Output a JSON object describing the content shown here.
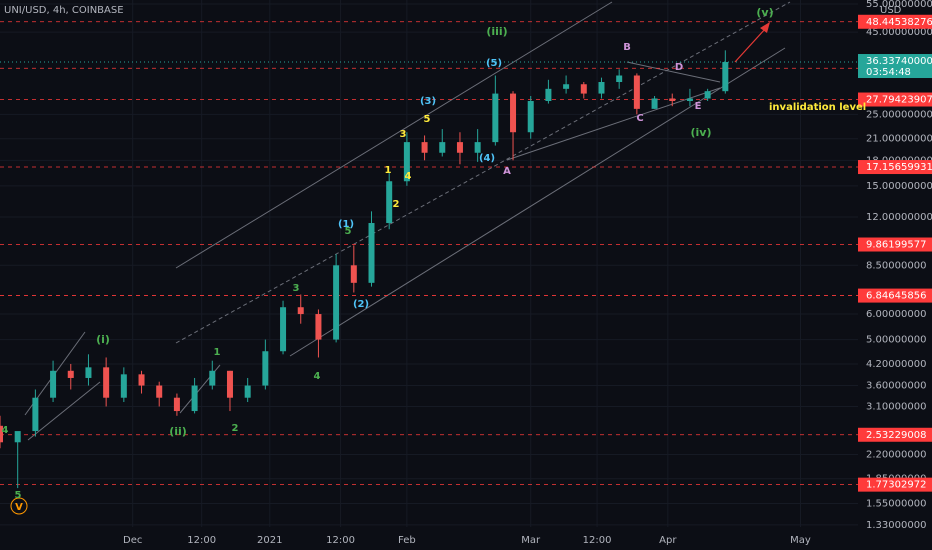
{
  "chart_data": {
    "type": "candlestick",
    "title": "UNI/USD, 4h, COINBASE",
    "currency": "USD",
    "log_scale": true,
    "up_color": "#26a69a",
    "down_color": "#ef5350",
    "x": [
      -30,
      -26,
      -22,
      -18,
      -14,
      -10,
      -6,
      -2,
      2,
      6,
      10,
      14,
      18,
      22,
      26,
      30,
      34,
      38,
      42,
      46,
      50,
      54,
      58,
      62,
      66,
      70,
      74,
      78,
      82,
      86,
      90,
      94,
      98,
      102,
      106,
      110,
      114,
      118,
      122,
      126,
      130,
      134
    ],
    "open": [
      2.7,
      2.4,
      2.6,
      3.3,
      4.0,
      3.8,
      4.1,
      3.3,
      3.9,
      3.6,
      3.3,
      3.0,
      3.6,
      4.0,
      3.3,
      3.6,
      4.6,
      6.3,
      6.0,
      5.0,
      8.5,
      7.5,
      11.5,
      15.5,
      20.5,
      19.0,
      20.5,
      19.0,
      20.5,
      29.0,
      22.0,
      27.5,
      30.0,
      31.0,
      29.0,
      31.5,
      33.0,
      26.0,
      28.0,
      27.5,
      28.0,
      29.5
    ],
    "high": [
      2.9,
      2.5,
      3.5,
      4.3,
      4.2,
      4.5,
      4.4,
      4.1,
      4.0,
      3.7,
      3.4,
      3.8,
      4.3,
      4.0,
      3.8,
      5.0,
      6.6,
      6.9,
      6.2,
      9.2,
      9.8,
      12.5,
      16.5,
      22.0,
      21.5,
      22.5,
      22.0,
      22.5,
      33.0,
      29.5,
      28.5,
      32.0,
      33.0,
      31.5,
      32.5,
      34.5,
      33.5,
      28.5,
      29.0,
      30.0,
      30.0,
      39.5
    ],
    "low": [
      2.3,
      1.73,
      2.5,
      3.2,
      3.5,
      3.6,
      3.1,
      3.2,
      3.4,
      3.1,
      2.9,
      2.95,
      3.5,
      3.0,
      3.2,
      3.5,
      4.5,
      5.6,
      4.4,
      4.9,
      7.0,
      7.3,
      11.0,
      15.0,
      18.0,
      18.5,
      17.5,
      17.8,
      20.0,
      18.0,
      21.0,
      27.0,
      29.0,
      28.0,
      28.0,
      30.0,
      25.0,
      26.0,
      26.5,
      26.5,
      27.5,
      29.0
    ],
    "close": [
      2.4,
      2.6,
      3.3,
      4.0,
      3.8,
      4.1,
      3.3,
      3.9,
      3.6,
      3.3,
      3.0,
      3.6,
      4.0,
      3.3,
      3.6,
      4.6,
      6.3,
      6.0,
      5.0,
      8.5,
      7.5,
      11.5,
      15.5,
      20.5,
      19.0,
      20.5,
      19.0,
      20.5,
      29.0,
      22.0,
      27.5,
      30.0,
      31.0,
      29.0,
      31.5,
      33.0,
      26.0,
      28.0,
      27.5,
      28.0,
      29.5,
      36.3374
    ],
    "xlim": [
      -30,
      164
    ],
    "ylim": [
      1.31,
      56.6
    ],
    "xticks": [
      {
        "value": 0,
        "label": "Dec"
      },
      {
        "value": 15.6,
        "label": "12:00"
      },
      {
        "value": 31,
        "label": "2021"
      },
      {
        "value": 47,
        "label": "12:00"
      },
      {
        "value": 62,
        "label": "Feb"
      },
      {
        "value": 90,
        "label": "Mar"
      },
      {
        "value": 105,
        "label": "12:00"
      },
      {
        "value": 121,
        "label": "Apr"
      },
      {
        "value": 151,
        "label": "May"
      }
    ],
    "yticks": [
      {
        "value": 55,
        "label": "55.00000000"
      },
      {
        "value": 45,
        "label": "45.00000000"
      },
      {
        "value": 25,
        "label": "25.00000000"
      },
      {
        "value": 21,
        "label": "21.00000000"
      },
      {
        "value": 18,
        "label": "18.00000000"
      },
      {
        "value": 15,
        "label": "15.00000000"
      },
      {
        "value": 12,
        "label": "12.00000000"
      },
      {
        "value": 8.5,
        "label": "8.50000000"
      },
      {
        "value": 6,
        "label": "6.00000000"
      },
      {
        "value": 5,
        "label": "5.00000000"
      },
      {
        "value": 4.2,
        "label": "4.20000000"
      },
      {
        "value": 3.6,
        "label": "3.60000000"
      },
      {
        "value": 3.1,
        "label": "3.10000000"
      },
      {
        "value": 2.2,
        "label": "2.20000000"
      },
      {
        "value": 1.85,
        "label": "1.85000000"
      },
      {
        "value": 1.55,
        "label": "1.55000000"
      },
      {
        "value": 1.33,
        "label": "1.33000000"
      }
    ],
    "level_color": "#ff3b3b",
    "levels": [
      48.44538276,
      34.75186654,
      27.79423907,
      17.15659931,
      9.86199577,
      6.84645856,
      2.53229008,
      1.77302972
    ],
    "last_price": {
      "value": 36.3374,
      "label": "36.33740000"
    },
    "countdown": "03:54:48",
    "annotations": [
      {
        "text": "(i)",
        "color": "#4caf50"
      },
      {
        "text": "(ii)",
        "color": "#4caf50"
      },
      {
        "text": "(iii)",
        "color": "#4caf50"
      },
      {
        "text": "(iv)",
        "color": "#4caf50"
      },
      {
        "text": "(v)",
        "color": "#4caf50"
      },
      {
        "text": "V",
        "color": "#ff9800"
      },
      {
        "text": "5",
        "color": "#4caf50"
      },
      {
        "text": "4",
        "color": "#4caf50"
      },
      {
        "text": "1",
        "color": "#4caf50"
      },
      {
        "text": "2",
        "color": "#4caf50"
      },
      {
        "text": "3",
        "color": "#4caf50"
      },
      {
        "text": "4",
        "color": "#4caf50"
      },
      {
        "text": "5",
        "color": "#4caf50"
      },
      {
        "text": "(1)",
        "color": "#4fc3f7"
      },
      {
        "text": "(2)",
        "color": "#4fc3f7"
      },
      {
        "text": "(3)",
        "color": "#4fc3f7"
      },
      {
        "text": "(4)",
        "color": "#4fc3f7"
      },
      {
        "text": "(5)",
        "color": "#4fc3f7"
      },
      {
        "text": "1",
        "color": "#ffeb3b"
      },
      {
        "text": "2",
        "color": "#ffeb3b"
      },
      {
        "text": "3",
        "color": "#ffeb3b"
      },
      {
        "text": "4",
        "color": "#ffeb3b"
      },
      {
        "text": "5",
        "color": "#ffeb3b"
      },
      {
        "text": "A",
        "color": "#ce93d8"
      },
      {
        "text": "B",
        "color": "#ce93d8"
      },
      {
        "text": "C",
        "color": "#ce93d8"
      },
      {
        "text": "D",
        "color": "#ce93d8"
      },
      {
        "text": "E",
        "color": "#ce93d8"
      },
      {
        "text": "invalidation level",
        "color": "#ffeb3b"
      }
    ]
  }
}
